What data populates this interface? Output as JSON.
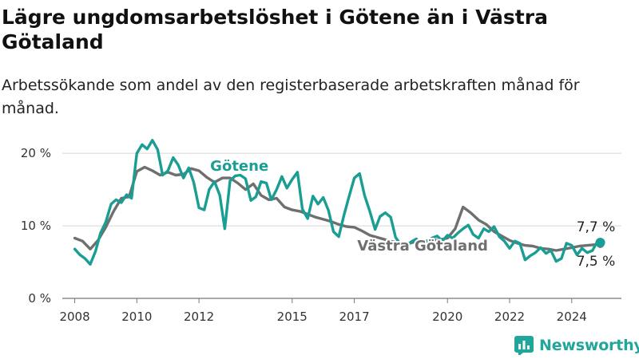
{
  "title": "Lägre ungdomsarbetslöshet i Götene än i Västra Götaland",
  "subtitle": "Arbetssökande som andel av den registerbaserade arbetskraften månad för månad.",
  "brand": {
    "name": "Newsworthy",
    "color": "#20a69a"
  },
  "chart_data": {
    "type": "line",
    "y_unit": "%",
    "ylim": [
      0,
      22
    ],
    "xlim": [
      2007.6,
      2025.6
    ],
    "grid": true,
    "y_ticks": [
      {
        "value": 0,
        "label": "0 %"
      },
      {
        "value": 10,
        "label": "10 %"
      },
      {
        "value": 20,
        "label": "20 %"
      }
    ],
    "x_ticks": [
      {
        "value": 2008,
        "label": "2008"
      },
      {
        "value": 2010,
        "label": "2010"
      },
      {
        "value": 2012,
        "label": "2012"
      },
      {
        "value": 2015,
        "label": "2015"
      },
      {
        "value": 2017,
        "label": "2017"
      },
      {
        "value": 2020,
        "label": "2020"
      },
      {
        "value": 2022,
        "label": "2022"
      },
      {
        "value": 2024,
        "label": "2024"
      }
    ],
    "series": [
      {
        "name": "Västra Götaland",
        "color": "#6f6f6f",
        "last_label": "7,5 %",
        "points": [
          [
            2008.0,
            8.3
          ],
          [
            2008.25,
            7.9
          ],
          [
            2008.5,
            6.8
          ],
          [
            2008.75,
            8.0
          ],
          [
            2009.0,
            9.8
          ],
          [
            2009.25,
            12.0
          ],
          [
            2009.5,
            13.8
          ],
          [
            2009.75,
            14.0
          ],
          [
            2010.0,
            17.5
          ],
          [
            2010.25,
            18.1
          ],
          [
            2010.5,
            17.6
          ],
          [
            2010.75,
            17.0
          ],
          [
            2011.0,
            17.4
          ],
          [
            2011.25,
            17.0
          ],
          [
            2011.5,
            17.1
          ],
          [
            2011.75,
            17.9
          ],
          [
            2012.0,
            17.6
          ],
          [
            2012.25,
            16.7
          ],
          [
            2012.5,
            16.0
          ],
          [
            2012.75,
            16.6
          ],
          [
            2013.0,
            16.6
          ],
          [
            2013.25,
            15.9
          ],
          [
            2013.5,
            15.0
          ],
          [
            2013.75,
            15.8
          ],
          [
            2014.0,
            14.2
          ],
          [
            2014.25,
            13.6
          ],
          [
            2014.5,
            13.8
          ],
          [
            2014.75,
            12.6
          ],
          [
            2015.0,
            12.2
          ],
          [
            2015.25,
            12.0
          ],
          [
            2015.5,
            11.6
          ],
          [
            2015.75,
            11.2
          ],
          [
            2016.0,
            10.9
          ],
          [
            2016.25,
            10.6
          ],
          [
            2016.5,
            10.2
          ],
          [
            2016.75,
            9.9
          ],
          [
            2017.0,
            9.8
          ],
          [
            2017.25,
            9.3
          ],
          [
            2017.5,
            8.7
          ],
          [
            2017.75,
            8.4
          ],
          [
            2018.0,
            8.1
          ],
          [
            2018.25,
            7.8
          ],
          [
            2018.5,
            7.6
          ],
          [
            2018.75,
            7.6
          ],
          [
            2019.0,
            7.8
          ],
          [
            2019.25,
            7.9
          ],
          [
            2019.5,
            8.0
          ],
          [
            2019.75,
            8.1
          ],
          [
            2020.0,
            8.3
          ],
          [
            2020.25,
            9.6
          ],
          [
            2020.5,
            12.6
          ],
          [
            2020.75,
            11.8
          ],
          [
            2021.0,
            10.8
          ],
          [
            2021.25,
            10.2
          ],
          [
            2021.5,
            9.2
          ],
          [
            2021.75,
            8.6
          ],
          [
            2022.0,
            8.0
          ],
          [
            2022.25,
            7.6
          ],
          [
            2022.5,
            7.3
          ],
          [
            2022.75,
            7.2
          ],
          [
            2023.0,
            6.9
          ],
          [
            2023.25,
            6.8
          ],
          [
            2023.5,
            6.6
          ],
          [
            2023.75,
            6.8
          ],
          [
            2024.0,
            7.0
          ],
          [
            2024.25,
            7.2
          ],
          [
            2024.5,
            7.3
          ],
          [
            2024.75,
            7.4
          ],
          [
            2024.92,
            7.5
          ]
        ]
      },
      {
        "name": "Götene",
        "color": "#1a9e94",
        "last_label": "7,7 %",
        "points": [
          [
            2008.0,
            6.8
          ],
          [
            2008.17,
            6.0
          ],
          [
            2008.33,
            5.5
          ],
          [
            2008.5,
            4.7
          ],
          [
            2008.67,
            6.5
          ],
          [
            2008.83,
            9.0
          ],
          [
            2009.0,
            10.5
          ],
          [
            2009.17,
            13.0
          ],
          [
            2009.33,
            13.6
          ],
          [
            2009.5,
            13.2
          ],
          [
            2009.67,
            14.3
          ],
          [
            2009.83,
            13.8
          ],
          [
            2010.0,
            20.0
          ],
          [
            2010.17,
            21.2
          ],
          [
            2010.33,
            20.6
          ],
          [
            2010.5,
            21.8
          ],
          [
            2010.67,
            20.5
          ],
          [
            2010.83,
            17.0
          ],
          [
            2011.0,
            17.6
          ],
          [
            2011.17,
            19.4
          ],
          [
            2011.33,
            18.4
          ],
          [
            2011.5,
            16.6
          ],
          [
            2011.67,
            18.0
          ],
          [
            2011.83,
            16.0
          ],
          [
            2012.0,
            12.5
          ],
          [
            2012.17,
            12.2
          ],
          [
            2012.33,
            15.0
          ],
          [
            2012.5,
            16.1
          ],
          [
            2012.67,
            14.2
          ],
          [
            2012.83,
            9.6
          ],
          [
            2013.0,
            16.2
          ],
          [
            2013.17,
            16.9
          ],
          [
            2013.33,
            17.0
          ],
          [
            2013.5,
            16.5
          ],
          [
            2013.67,
            13.5
          ],
          [
            2013.83,
            14.0
          ],
          [
            2014.0,
            16.1
          ],
          [
            2014.17,
            15.9
          ],
          [
            2014.33,
            13.6
          ],
          [
            2014.5,
            15.0
          ],
          [
            2014.67,
            16.8
          ],
          [
            2014.83,
            15.2
          ],
          [
            2015.0,
            16.4
          ],
          [
            2015.17,
            17.4
          ],
          [
            2015.33,
            12.3
          ],
          [
            2015.5,
            11.0
          ],
          [
            2015.67,
            14.1
          ],
          [
            2015.83,
            13.0
          ],
          [
            2016.0,
            13.9
          ],
          [
            2016.17,
            12.1
          ],
          [
            2016.33,
            9.2
          ],
          [
            2016.5,
            8.5
          ],
          [
            2016.67,
            11.5
          ],
          [
            2016.83,
            14.0
          ],
          [
            2017.0,
            16.6
          ],
          [
            2017.17,
            17.2
          ],
          [
            2017.33,
            14.2
          ],
          [
            2017.5,
            12.0
          ],
          [
            2017.67,
            9.5
          ],
          [
            2017.83,
            11.3
          ],
          [
            2018.0,
            11.8
          ],
          [
            2018.17,
            11.2
          ],
          [
            2018.33,
            8.4
          ],
          [
            2018.5,
            7.4
          ],
          [
            2018.67,
            7.0
          ],
          [
            2018.83,
            7.8
          ],
          [
            2019.0,
            8.2
          ],
          [
            2019.17,
            7.4
          ],
          [
            2019.33,
            7.8
          ],
          [
            2019.5,
            8.3
          ],
          [
            2019.67,
            8.6
          ],
          [
            2019.83,
            7.9
          ],
          [
            2020.0,
            8.7
          ],
          [
            2020.17,
            8.3
          ],
          [
            2020.33,
            9.0
          ],
          [
            2020.5,
            9.6
          ],
          [
            2020.67,
            10.1
          ],
          [
            2020.83,
            8.8
          ],
          [
            2021.0,
            8.3
          ],
          [
            2021.17,
            9.6
          ],
          [
            2021.33,
            9.2
          ],
          [
            2021.5,
            9.9
          ],
          [
            2021.67,
            8.5
          ],
          [
            2021.83,
            7.9
          ],
          [
            2022.0,
            6.9
          ],
          [
            2022.17,
            7.9
          ],
          [
            2022.33,
            7.6
          ],
          [
            2022.5,
            5.3
          ],
          [
            2022.67,
            5.9
          ],
          [
            2022.83,
            6.3
          ],
          [
            2023.0,
            7.0
          ],
          [
            2023.17,
            6.2
          ],
          [
            2023.33,
            6.6
          ],
          [
            2023.5,
            5.1
          ],
          [
            2023.67,
            5.5
          ],
          [
            2023.83,
            7.6
          ],
          [
            2024.0,
            7.3
          ],
          [
            2024.17,
            6.0
          ],
          [
            2024.33,
            6.9
          ],
          [
            2024.5,
            6.3
          ],
          [
            2024.67,
            6.6
          ],
          [
            2024.83,
            7.9
          ],
          [
            2024.92,
            7.7
          ]
        ]
      }
    ],
    "series_labels": [
      {
        "series": "Götene",
        "text": "Götene",
        "at": [
          2013.3,
          17.6
        ]
      },
      {
        "series": "Västra Götaland",
        "text": "Västra Götaland",
        "at": [
          2019.2,
          6.6
        ]
      }
    ]
  }
}
